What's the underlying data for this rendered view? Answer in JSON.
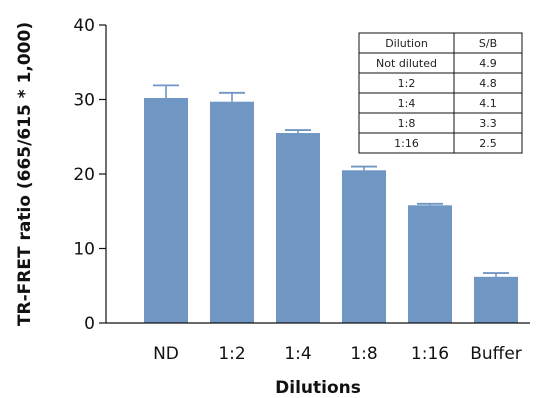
{
  "chart_data": {
    "type": "bar",
    "title": "",
    "xlabel": "Dilutions",
    "ylabel": "TR-FRET ratio (665/615 * 1,000)",
    "ylim": [
      0,
      40
    ],
    "yticks": [
      0,
      10,
      20,
      30,
      40
    ],
    "categories": [
      "ND",
      "1:2",
      "1:4",
      "1:8",
      "1:16",
      "Buffer"
    ],
    "values": [
      30.2,
      29.7,
      25.5,
      20.5,
      15.8,
      6.2
    ],
    "errors": [
      1.7,
      1.2,
      0.4,
      0.5,
      0.2,
      0.5
    ],
    "bar_color": "#7096c3",
    "grid": false,
    "inset_table": {
      "headers": [
        "Dilution",
        "S/B"
      ],
      "rows": [
        [
          "Not diluted",
          "4.9"
        ],
        [
          "1:2",
          "4.8"
        ],
        [
          "1:4",
          "4.1"
        ],
        [
          "1:8",
          "3.3"
        ],
        [
          "1:16",
          "2.5"
        ]
      ]
    }
  }
}
